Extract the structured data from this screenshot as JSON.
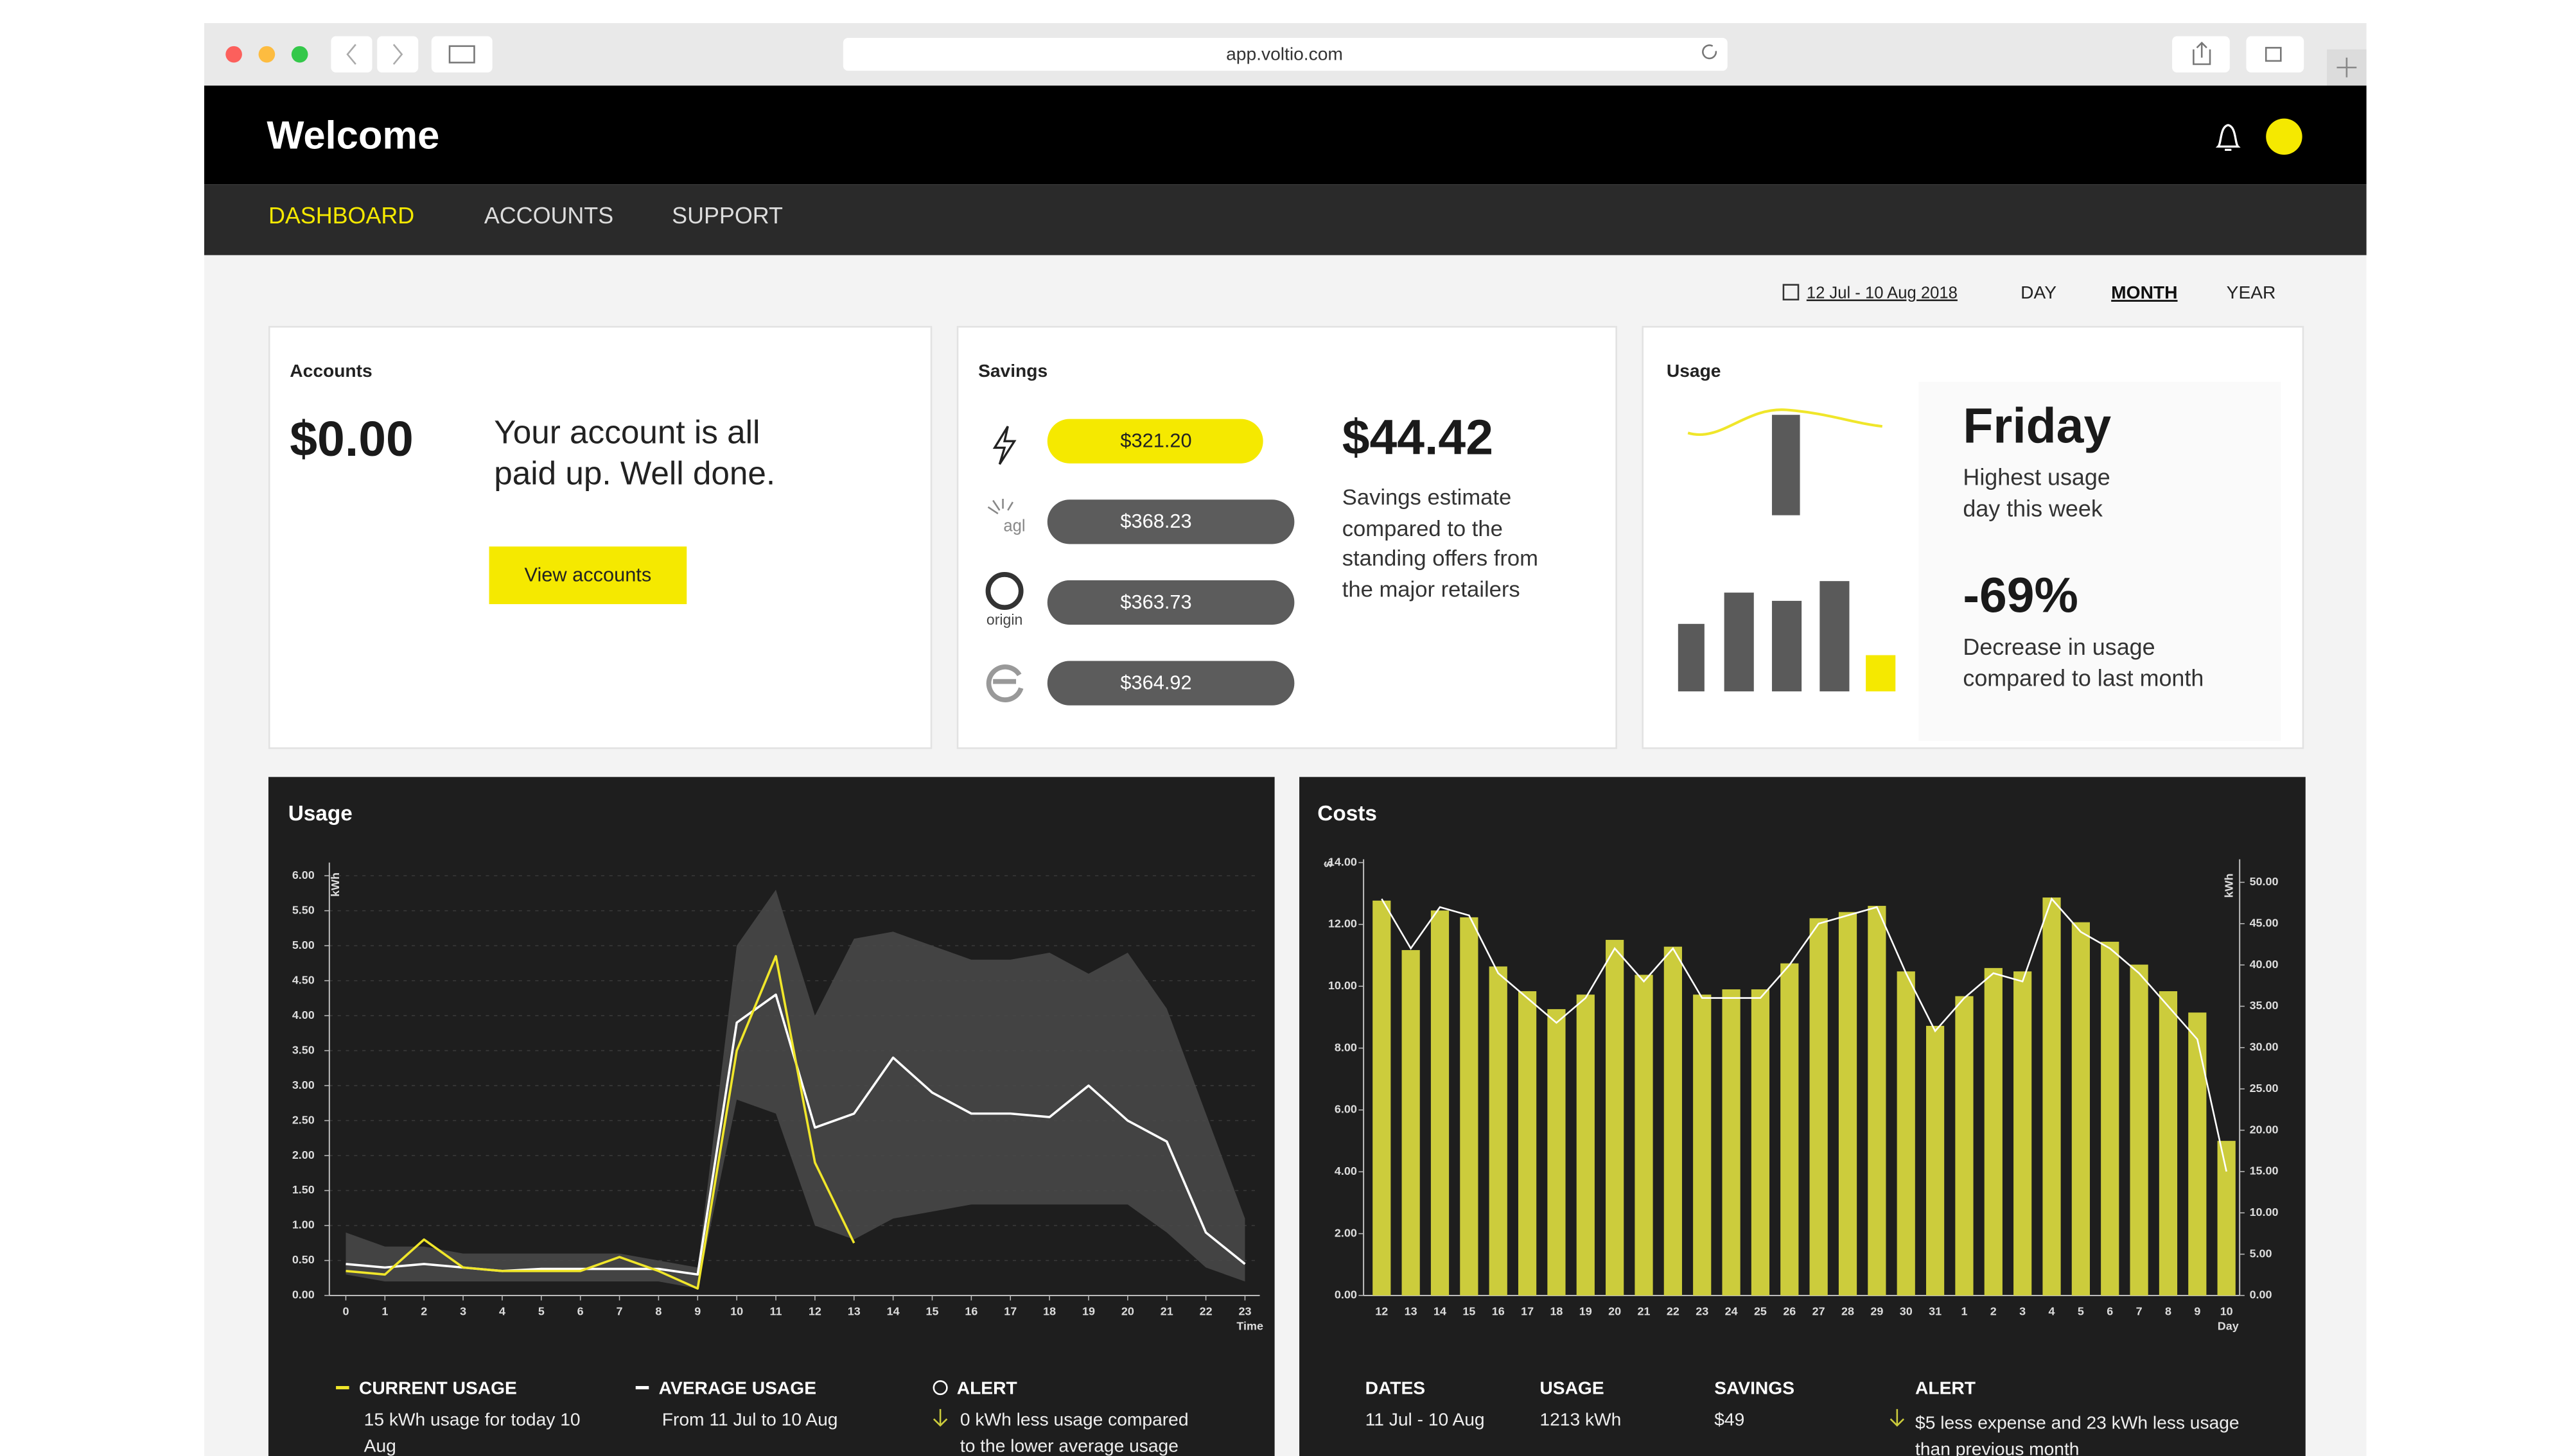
{
  "browser": {
    "url": "app.voltio.com"
  },
  "header": {
    "title": "Welcome"
  },
  "nav": [
    "DASHBOARD",
    "ACCOUNTS",
    "SUPPORT"
  ],
  "period": {
    "range": "12 Jul - 10 Aug 2018",
    "options": [
      "DAY",
      "MONTH",
      "YEAR"
    ]
  },
  "accounts": {
    "title": "Accounts",
    "balance": "$0.00",
    "message": [
      "Your account is all",
      "paid up. Well done."
    ],
    "button": "View accounts"
  },
  "savings": {
    "title": "Savings",
    "offers": [
      {
        "value": "$321.20"
      },
      {
        "value": "$368.23",
        "logo": "agl"
      },
      {
        "value": "$363.73",
        "logo": "origin"
      },
      {
        "value": "$364.92"
      }
    ],
    "amount": "$44.42",
    "description": [
      "Savings estimate",
      "compared to the",
      "standing offers from",
      "the major retailers"
    ]
  },
  "usage_summary": {
    "title": "Usage",
    "day": "Friday",
    "day_note": [
      "Highest usage",
      "day this week"
    ],
    "change": "-69%",
    "change_note": [
      "Decrease in usage",
      "compared to last month"
    ]
  },
  "usage_chart": {
    "type": "line",
    "title": "Usage",
    "ylabel": "kWh",
    "xlabel": "Time",
    "x": [
      0,
      1,
      2,
      3,
      4,
      5,
      6,
      7,
      8,
      9,
      10,
      11,
      12,
      13,
      14,
      15,
      16,
      17,
      18,
      19,
      20,
      21,
      22,
      23
    ],
    "xlim": [
      0,
      23
    ],
    "ylim": [
      0,
      6
    ],
    "yticks": [
      {
        "value": 0,
        "label": "0.00"
      },
      {
        "value": 0.5,
        "label": "0.50"
      },
      {
        "value": 1,
        "label": "1.00"
      },
      {
        "value": 1.5,
        "label": "1.50"
      },
      {
        "value": 2,
        "label": "2.00"
      },
      {
        "value": 2.5,
        "label": "2.50"
      },
      {
        "value": 3,
        "label": "3.00"
      },
      {
        "value": 3.5,
        "label": "3.50"
      },
      {
        "value": 4,
        "label": "4.00"
      },
      {
        "value": 4.5,
        "label": "4.50"
      },
      {
        "value": 5,
        "label": "5.00"
      },
      {
        "value": 5.5,
        "label": "5.50"
      },
      {
        "value": 6,
        "label": "6.00"
      }
    ],
    "grid": true,
    "band": {
      "color": "#4a4a4a",
      "lower": [
        0.3,
        0.2,
        0.2,
        0.2,
        0.2,
        0.2,
        0.2,
        0.2,
        0.2,
        0.1,
        2.8,
        2.6,
        1.0,
        0.8,
        1.1,
        1.2,
        1.3,
        1.3,
        1.3,
        1.3,
        1.3,
        0.9,
        0.4,
        0.2
      ],
      "upper": [
        0.9,
        0.7,
        0.7,
        0.6,
        0.6,
        0.6,
        0.6,
        0.6,
        0.5,
        0.4,
        5.0,
        5.8,
        4.0,
        5.1,
        5.2,
        5.0,
        4.8,
        4.8,
        4.9,
        4.6,
        4.9,
        4.1,
        2.6,
        1.1
      ]
    },
    "series": [
      {
        "name": "CURRENT USAGE",
        "note": [
          "15 kWh usage for today 10",
          "Aug"
        ],
        "color": "#f0e62a",
        "values": [
          0.35,
          0.3,
          0.8,
          0.4,
          0.35,
          0.35,
          0.35,
          0.55,
          0.35,
          0.1,
          3.5,
          4.85,
          1.9,
          0.75,
          null,
          null,
          null,
          null,
          null,
          null,
          null,
          null,
          null,
          null
        ]
      },
      {
        "name": "AVERAGE USAGE",
        "note": [
          "From 11 Jul to 10 Aug"
        ],
        "color": "#ffffff",
        "values": [
          0.45,
          0.4,
          0.45,
          0.4,
          0.35,
          0.38,
          0.38,
          0.38,
          0.38,
          0.3,
          3.9,
          4.3,
          2.4,
          2.6,
          3.4,
          2.9,
          2.6,
          2.6,
          2.55,
          3.0,
          2.5,
          2.2,
          0.9,
          0.45
        ]
      }
    ],
    "alert": {
      "title": "ALERT",
      "note": [
        "0 kWh less usage compared",
        "to the lower average usage"
      ]
    }
  },
  "costs_chart": {
    "type": "bar",
    "title": "Costs",
    "ylabel": "$",
    "y2label": "kWh",
    "xlabel": "Day",
    "categories": [
      12,
      13,
      14,
      15,
      16,
      17,
      18,
      19,
      20,
      21,
      22,
      23,
      24,
      25,
      26,
      27,
      28,
      29,
      30,
      31,
      1,
      2,
      3,
      4,
      5,
      6,
      7,
      8,
      9,
      10
    ],
    "ylim": [
      0,
      14
    ],
    "yticks": [
      {
        "value": 0,
        "label": "0.00"
      },
      {
        "value": 2,
        "label": "2.00"
      },
      {
        "value": 4,
        "label": "4.00"
      },
      {
        "value": 6,
        "label": "6.00"
      },
      {
        "value": 8,
        "label": "8.00"
      },
      {
        "value": 10,
        "label": "10.00"
      },
      {
        "value": 12,
        "label": "12.00"
      },
      {
        "value": 14,
        "label": "14.00"
      }
    ],
    "y2lim": [
      0,
      50
    ],
    "y2ticks": [
      {
        "value": 0,
        "label": "0.00"
      },
      {
        "value": 5,
        "label": "5.00"
      },
      {
        "value": 10,
        "label": "10.00"
      },
      {
        "value": 15,
        "label": "15.00"
      },
      {
        "value": 20,
        "label": "20.00"
      },
      {
        "value": 25,
        "label": "25.00"
      },
      {
        "value": 30,
        "label": "30.00"
      },
      {
        "value": 35,
        "label": "35.00"
      },
      {
        "value": 40,
        "label": "40.00"
      },
      {
        "value": 45,
        "label": "45.00"
      },
      {
        "value": 50,
        "label": "50.00"
      }
    ],
    "series": [
      {
        "color": "#cccc3c",
        "values": [
          12.77,
          11.17,
          12.45,
          12.23,
          10.64,
          9.84,
          9.26,
          9.73,
          11.5,
          10.37,
          11.28,
          9.73,
          9.9,
          9.9,
          10.74,
          12.2,
          12.4,
          12.6,
          10.48,
          8.72,
          9.68,
          10.59,
          10.48,
          12.87,
          12.07,
          11.44,
          10.7,
          9.84,
          9.15,
          5.0
        ]
      },
      {
        "color": "#ffffff",
        "axis": "y2",
        "values": [
          48,
          42,
          47,
          46,
          39,
          36,
          33,
          36,
          42,
          38,
          42,
          36,
          36,
          36,
          40,
          45,
          46,
          47,
          39,
          32,
          36,
          39,
          38,
          48,
          44,
          42,
          39,
          35,
          31,
          15
        ]
      }
    ],
    "footer": [
      {
        "label": "DATES",
        "value": "11 Jul - 10 Aug"
      },
      {
        "label": "USAGE",
        "value": "1213 kWh"
      },
      {
        "label": "SAVINGS",
        "value": "$49"
      }
    ],
    "alert": {
      "title": "ALERT",
      "note": [
        "$5 less expense and 23 kWh less usage",
        "than previous month"
      ]
    }
  }
}
